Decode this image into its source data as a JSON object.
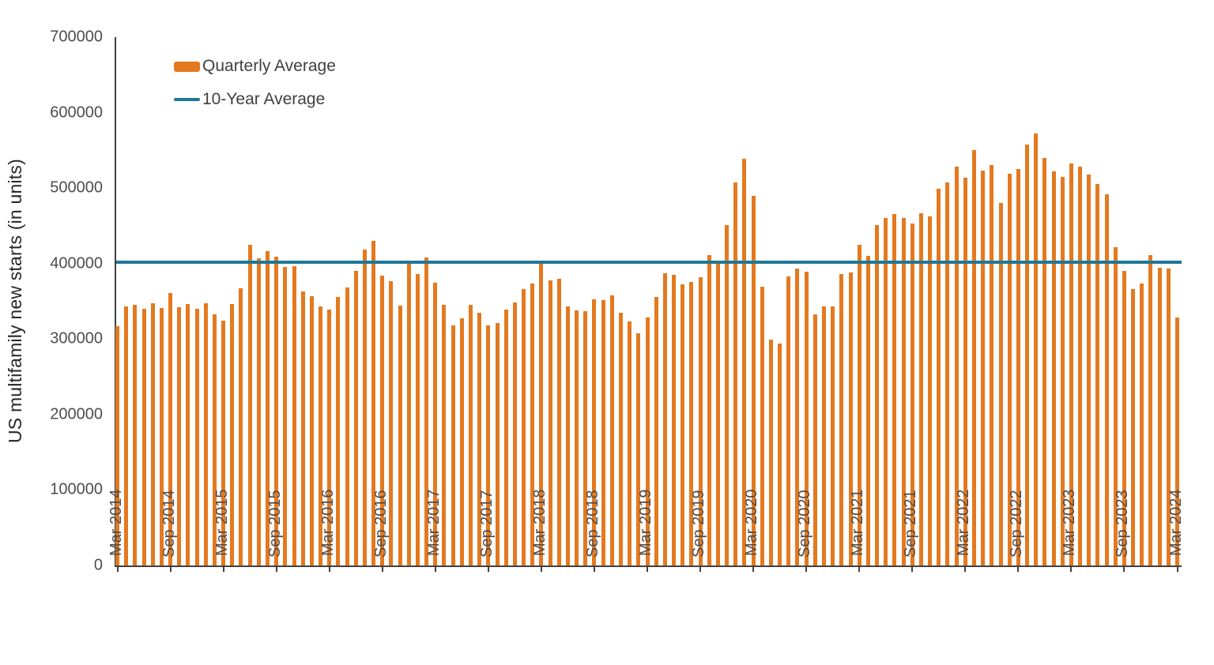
{
  "chart_data": {
    "type": "bar",
    "title": "",
    "ylabel": "US multifamily new starts (in units)",
    "xlabel": "",
    "ylim": [
      0,
      700000
    ],
    "y_ticks": [
      0,
      100000,
      200000,
      300000,
      400000,
      500000,
      600000,
      700000
    ],
    "x_tick_labels": [
      "Mar 2014",
      "Sep 2014",
      "Mar 2015",
      "Sep 2015",
      "Mar 2016",
      "Sep 2016",
      "Mar 2017",
      "Sep 2017",
      "Mar 2018",
      "Sep 2018",
      "Mar 2019",
      "Sep 2019",
      "Mar 2020",
      "Sep 2020",
      "Mar 2021",
      "Sep 2021",
      "Mar 2022",
      "Sep 2022",
      "Mar 2023",
      "Sep 2023",
      "Mar 2024"
    ],
    "x_start": "Mar 2014",
    "x_frequency": "monthly",
    "grid": false,
    "legend_position": "top-left",
    "series": [
      {
        "name": "Quarterly Average",
        "type": "bar",
        "color": "#E4791F",
        "values": [
          317000,
          343000,
          345000,
          340000,
          347000,
          341000,
          361000,
          342000,
          346000,
          340000,
          347000,
          333000,
          324000,
          346000,
          367000,
          425000,
          407000,
          416000,
          409000,
          396000,
          397000,
          363000,
          357000,
          343000,
          339000,
          356000,
          368000,
          390000,
          419000,
          430000,
          384000,
          377000,
          344000,
          402000,
          386000,
          408000,
          375000,
          345000,
          318000,
          328000,
          345000,
          335000,
          318000,
          321000,
          339000,
          348000,
          366000,
          374000,
          401000,
          378000,
          380000,
          343000,
          338000,
          337000,
          353000,
          352000,
          358000,
          335000,
          323000,
          308000,
          329000,
          356000,
          387000,
          385000,
          372000,
          376000,
          382000,
          411000,
          400000,
          451000,
          508000,
          539000,
          490000,
          369000,
          299000,
          294000,
          383000,
          393000,
          389000,
          333000,
          343000,
          343000,
          386000,
          388000,
          425000,
          410000,
          451000,
          460000,
          466000,
          460000,
          453000,
          467000,
          462000,
          499000,
          508000,
          528000,
          514000,
          550000,
          523000,
          531000,
          480000,
          519000,
          525000,
          558000,
          572000,
          540000,
          522000,
          515000,
          533000,
          528000,
          518000,
          505000,
          492000,
          422000,
          390000,
          366000,
          374000,
          411000,
          395000,
          393000,
          329000
        ]
      },
      {
        "name": "10-Year Average",
        "type": "line",
        "color": "#1E7898",
        "value": 402000
      }
    ]
  }
}
